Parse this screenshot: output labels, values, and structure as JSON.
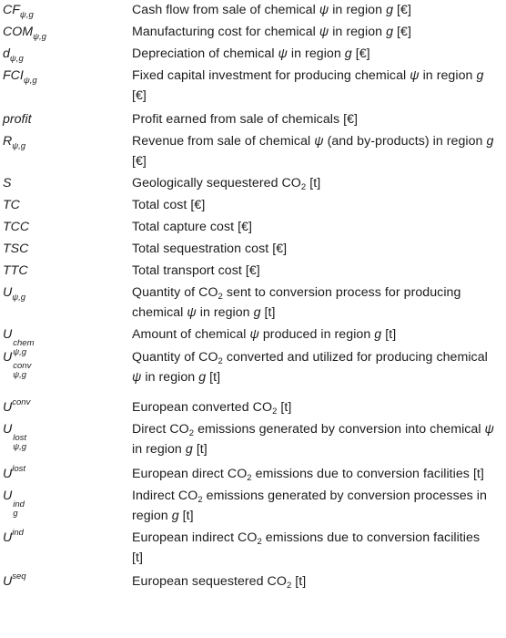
{
  "rows": [
    {
      "base": "CF",
      "sub": "ψ,g",
      "desc": [
        {
          "t": "Cash flow from sale of chemical "
        },
        {
          "i": "ψ"
        },
        {
          "t": " in region "
        },
        {
          "i": "g"
        },
        {
          "t": " [€]"
        }
      ]
    },
    {
      "base": "COM",
      "sub": "ψ,g",
      "desc": [
        {
          "t": "Manufacturing cost for chemical "
        },
        {
          "i": "ψ"
        },
        {
          "t": " in region "
        },
        {
          "i": "g"
        },
        {
          "t": " [€]"
        }
      ]
    },
    {
      "base": "d",
      "sub": "ψ,g",
      "desc": [
        {
          "t": "Depreciation of chemical "
        },
        {
          "i": "ψ"
        },
        {
          "t": " in region "
        },
        {
          "i": "g"
        },
        {
          "t": " [€]"
        }
      ]
    },
    {
      "base": "FCI",
      "sub": "ψ,g",
      "desc": [
        {
          "t": "Fixed capital investment for producing chemical "
        },
        {
          "i": "ψ"
        },
        {
          "t": " in region "
        },
        {
          "i": "g"
        },
        {
          "t": " [€]"
        }
      ]
    },
    {
      "base": "profit",
      "desc": [
        {
          "t": "Profit earned from sale of chemicals [€]"
        }
      ]
    },
    {
      "base": "R",
      "sub": "ψ,g",
      "desc": [
        {
          "t": "Revenue from sale of chemical "
        },
        {
          "i": "ψ"
        },
        {
          "t": " (and by-products) in region "
        },
        {
          "i": "g"
        },
        {
          "t": " [€]"
        }
      ]
    },
    {
      "base": "S",
      "desc": [
        {
          "t": "Geologically sequestered CO"
        },
        {
          "s": "2"
        },
        {
          "t": " [t]"
        }
      ]
    },
    {
      "base": "TC",
      "desc": [
        {
          "t": "Total cost [€]"
        }
      ]
    },
    {
      "base": "TCC",
      "desc": [
        {
          "t": "Total capture cost [€]"
        }
      ]
    },
    {
      "base": "TSC",
      "desc": [
        {
          "t": "Total sequestration cost [€]"
        }
      ]
    },
    {
      "base": "TTC",
      "desc": [
        {
          "t": "Total transport cost [€]"
        }
      ]
    },
    {
      "base": "U",
      "sub": "ψ,g",
      "desc": [
        {
          "t": "Quantity of CO"
        },
        {
          "s": "2"
        },
        {
          "t": " sent to conversion process for producing chemical "
        },
        {
          "i": "ψ"
        },
        {
          "t": " in region "
        },
        {
          "i": "g"
        },
        {
          "t": " [t]"
        }
      ]
    },
    {
      "base": "U",
      "sup": "chem",
      "sub": "ψ,g",
      "desc": [
        {
          "t": "Amount of chemical "
        },
        {
          "i": "ψ"
        },
        {
          "t": " produced in region "
        },
        {
          "i": "g"
        },
        {
          "t": " [t]"
        }
      ]
    },
    {
      "base": "U",
      "sup": "conv",
      "sub": "ψ,g",
      "desc": [
        {
          "t": "Quantity of CO"
        },
        {
          "s": "2"
        },
        {
          "t": " converted and utilized for producing chemical "
        },
        {
          "i": "ψ"
        },
        {
          "t": " in region "
        },
        {
          "i": "g"
        },
        {
          "t": " [t]"
        }
      ]
    },
    {
      "base": "U",
      "sup": "conv",
      "desc": [
        {
          "t": "European converted CO"
        },
        {
          "s": "2"
        },
        {
          "t": " [t]"
        }
      ]
    },
    {
      "base": "U",
      "sup": "lost",
      "sub": "ψ,g",
      "desc": [
        {
          "t": "Direct CO"
        },
        {
          "s": "2"
        },
        {
          "t": " emissions generated by conversion into chemical "
        },
        {
          "i": "ψ"
        },
        {
          "t": " in region "
        },
        {
          "i": "g"
        },
        {
          "t": " [t]"
        }
      ]
    },
    {
      "base": "U",
      "sup": "lost",
      "desc": [
        {
          "t": "European direct CO"
        },
        {
          "s": "2"
        },
        {
          "t": " emissions due to conversion facilities [t]"
        }
      ]
    },
    {
      "base": "U",
      "sup": "ind",
      "sub": "g",
      "desc": [
        {
          "t": "Indirect CO"
        },
        {
          "s": "2"
        },
        {
          "t": " emissions generated by conversion processes in region "
        },
        {
          "i": "g"
        },
        {
          "t": " [t]"
        }
      ]
    },
    {
      "base": "U",
      "sup": "ind",
      "desc": [
        {
          "t": "European indirect CO"
        },
        {
          "s": "2"
        },
        {
          "t": " emissions due to conversion facilities [t]"
        }
      ]
    },
    {
      "base": "U",
      "sup": "seq",
      "desc": [
        {
          "t": "European sequestered CO"
        },
        {
          "s": "2"
        },
        {
          "t": " [t]"
        }
      ]
    }
  ]
}
